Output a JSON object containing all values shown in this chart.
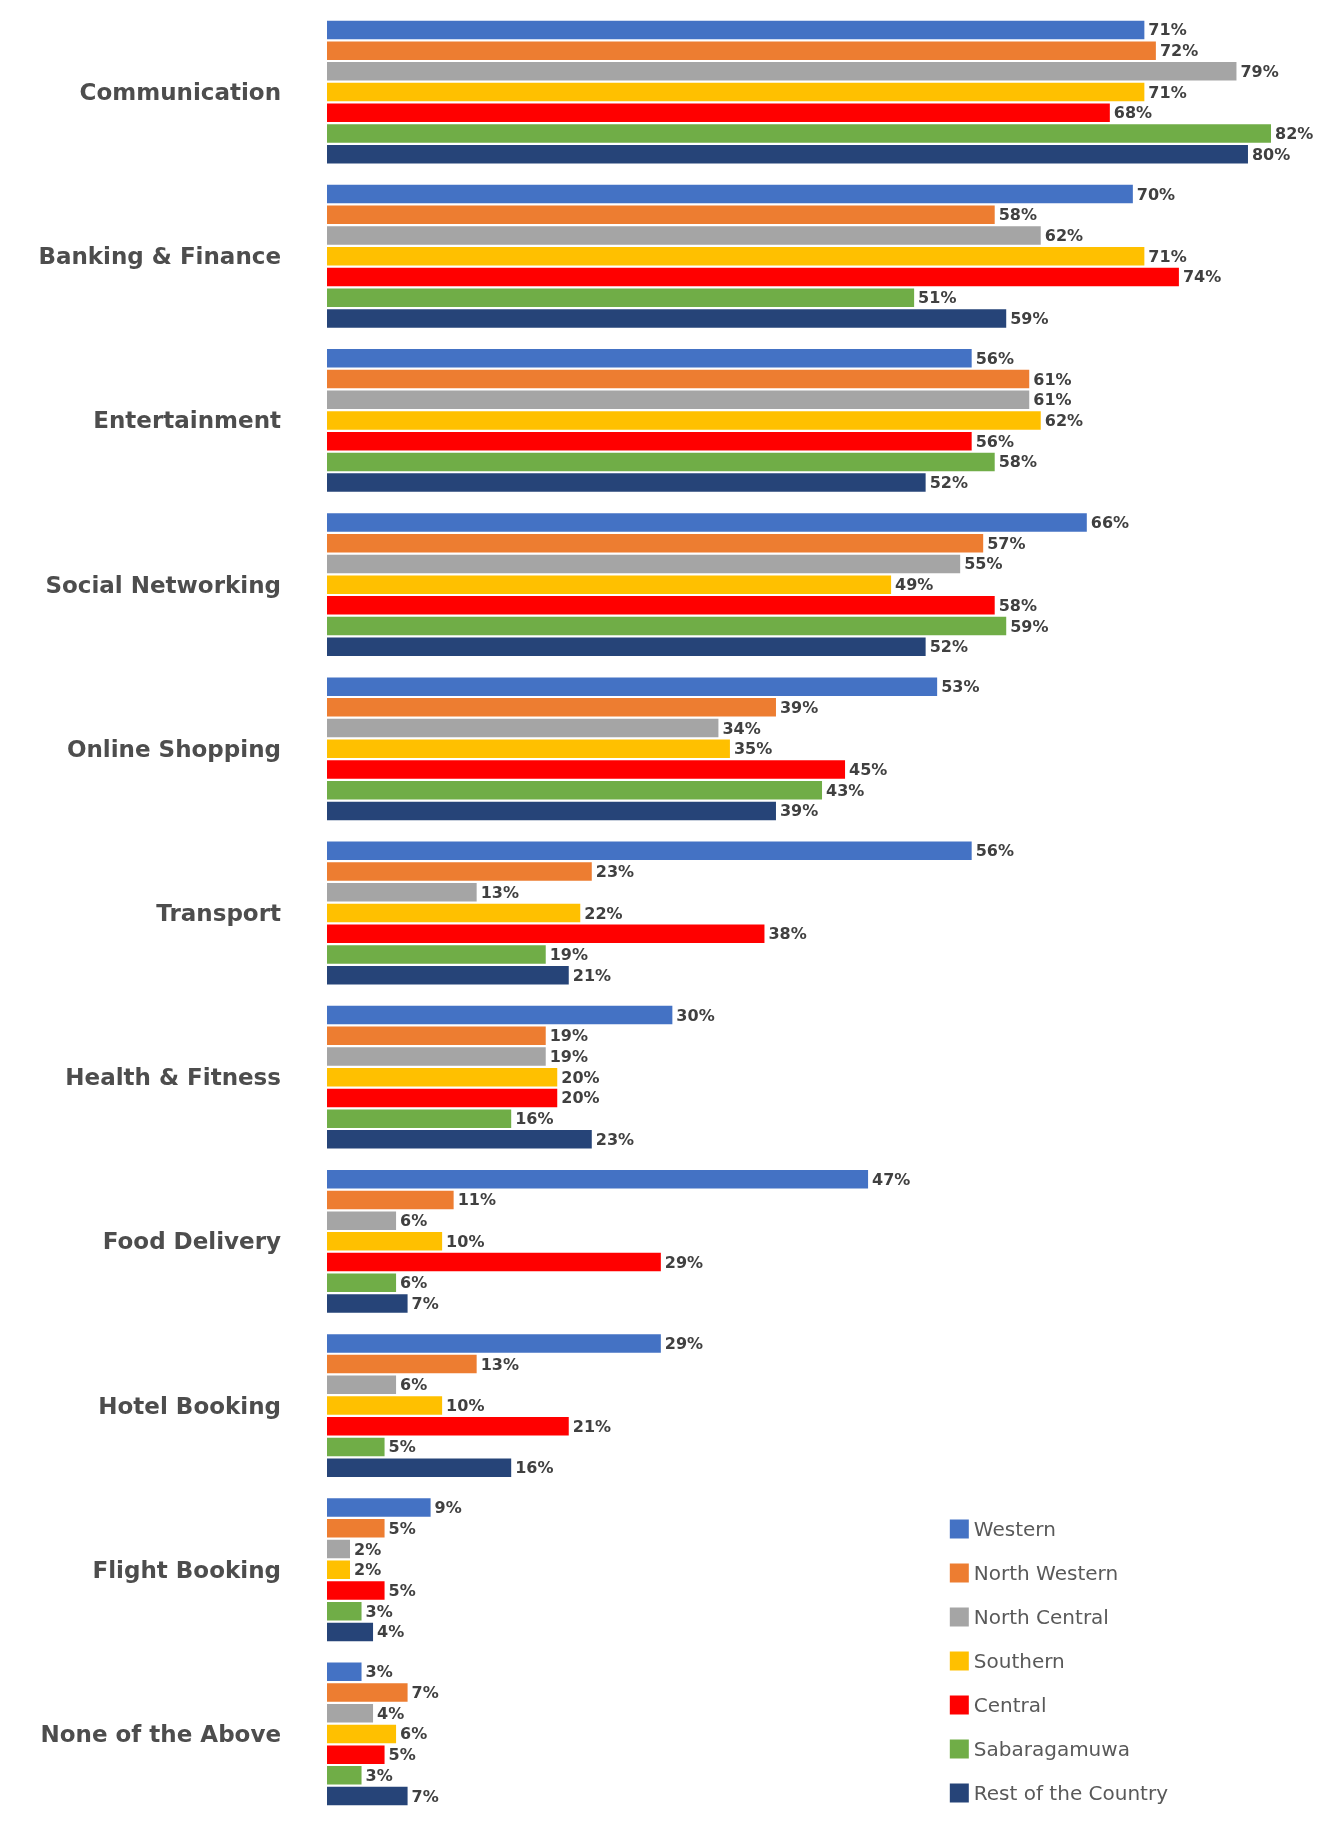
{
  "chart_data": {
    "type": "bar",
    "orientation": "horizontal",
    "tick_labels": "y",
    "legend": "bottom right",
    "categories": [
      "Communication",
      "Banking & Finance",
      "Entertainment",
      "Social Networking",
      "Online Shopping",
      "Transport",
      "Health & Fitness",
      "Food Delivery",
      "Hotel Booking",
      "Flight Booking",
      "None of the Above"
    ],
    "series": [
      {
        "name": "Western",
        "color": "#4472c4",
        "values": [
          71,
          70,
          56,
          66,
          53,
          56,
          30,
          47,
          29,
          9,
          3
        ],
        "value_labels": [
          "71%",
          "70%",
          "56%",
          "66%",
          "53%",
          "56%",
          "30%",
          "47%",
          "29%",
          "9%",
          "3%"
        ]
      },
      {
        "name": "North Western",
        "color": "#ed7d31",
        "values": [
          72,
          58,
          61,
          57,
          39,
          23,
          19,
          11,
          13,
          5,
          7
        ],
        "value_labels": [
          "72%",
          "58%",
          "61%",
          "57%",
          "39%",
          "23%",
          "19%",
          "11%",
          "13%",
          "5%",
          "7%"
        ]
      },
      {
        "name": "North Central",
        "color": "#a5a5a5",
        "values": [
          79,
          62,
          61,
          55,
          34,
          13,
          19,
          6,
          6,
          2,
          4
        ],
        "value_labels": [
          "79%",
          "62%",
          "61%",
          "55%",
          "34%",
          "13%",
          "19%",
          "6%",
          "6%",
          "2%",
          "4%"
        ]
      },
      {
        "name": "Southern",
        "color": "#ffc000",
        "values": [
          71,
          71,
          62,
          49,
          35,
          22,
          20,
          10,
          10,
          2,
          6
        ],
        "value_labels": [
          "71%",
          "71%",
          "62%",
          "49%",
          "35%",
          "22%",
          "20%",
          "10%",
          "10%",
          "2%",
          "6%"
        ]
      },
      {
        "name": "Central",
        "color": "#ff0000",
        "values": [
          68,
          74,
          56,
          58,
          45,
          38,
          20,
          29,
          21,
          5,
          5
        ],
        "value_labels": [
          "68%",
          "74%",
          "56%",
          "58%",
          "45%",
          "38%",
          "20%",
          "29%",
          "21%",
          "5%",
          "5%"
        ]
      },
      {
        "name": "Sabaragamuwa",
        "color": "#70ad47",
        "values": [
          82,
          51,
          58,
          59,
          43,
          19,
          16,
          6,
          5,
          3,
          3
        ],
        "value_labels": [
          "82%",
          "51%",
          "58%",
          "59%",
          "43%",
          "19%",
          "16%",
          "6%",
          "5%",
          "3%",
          "3%"
        ]
      },
      {
        "name": "Rest of the Country",
        "color": "#264478",
        "values": [
          80,
          59,
          52,
          52,
          39,
          21,
          23,
          7,
          16,
          4,
          7
        ],
        "value_labels": [
          "80%",
          "59%",
          "52%",
          "52%",
          "39%",
          "21%",
          "23%",
          "7%",
          "16%",
          "4%",
          "7%"
        ]
      }
    ]
  }
}
